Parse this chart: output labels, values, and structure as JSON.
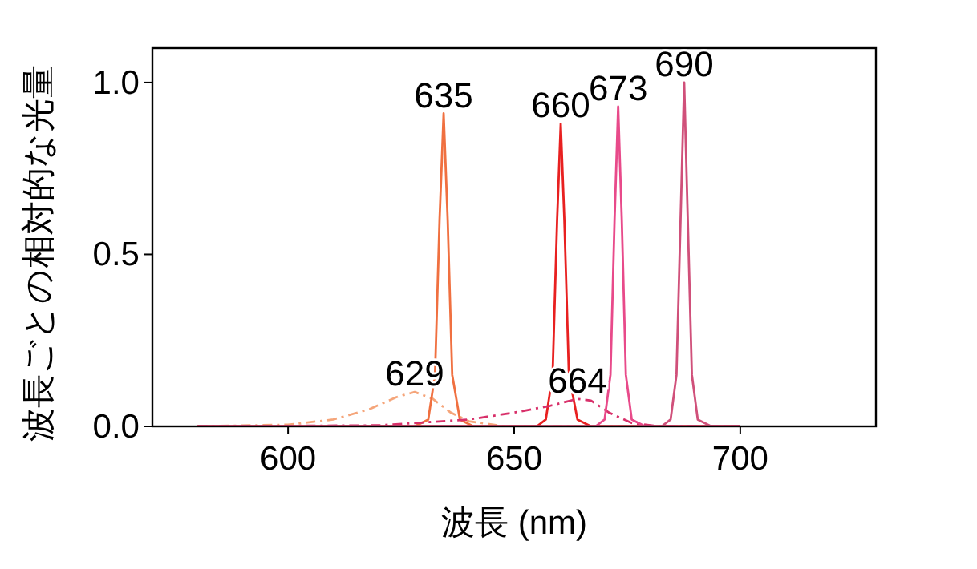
{
  "chart_data": {
    "type": "line",
    "xlabel": "波長 (nm)",
    "ylabel": "波長ごとの相対的な光量",
    "xlim": [
      570,
      730
    ],
    "ylim": [
      0,
      1.1
    ],
    "xticks": [
      600,
      650,
      700
    ],
    "yticks": [
      {
        "value": 0,
        "label": "0.0"
      },
      {
        "value": 0.5,
        "label": "0.5"
      },
      {
        "value": 1,
        "label": "1.0"
      }
    ],
    "grid": false,
    "marker": "none",
    "series": [
      {
        "color": "#f5a57a",
        "line_style": "dashdot",
        "x": [
          580,
          600,
          610,
          618,
          624,
          628,
          632,
          636,
          640,
          648,
          700
        ],
        "values": [
          0,
          0.005,
          0.02,
          0.05,
          0.085,
          0.1,
          0.08,
          0.04,
          0.015,
          0,
          0
        ]
      },
      {
        "color": "#f07040",
        "line_style": "solid",
        "x": [
          580,
          628,
          631,
          632.5,
          633.5,
          634.4,
          635.3,
          636.3,
          638,
          641,
          700
        ],
        "values": [
          0,
          0,
          0.02,
          0.15,
          0.6,
          0.91,
          0.6,
          0.15,
          0.02,
          0,
          0
        ]
      },
      {
        "color": "#e82020",
        "line_style": "solid",
        "x": [
          580,
          655,
          657,
          658.5,
          659.5,
          660.3,
          661.1,
          662.1,
          664,
          667,
          700
        ],
        "values": [
          0,
          0,
          0.02,
          0.15,
          0.6,
          0.88,
          0.6,
          0.15,
          0.02,
          0,
          0
        ]
      },
      {
        "color": "#d8306a",
        "line_style": "dashdot",
        "x": [
          580,
          620,
          640,
          650,
          658,
          664,
          667,
          671,
          676,
          682,
          700
        ],
        "values": [
          0,
          0.003,
          0.02,
          0.04,
          0.06,
          0.08,
          0.075,
          0.04,
          0.01,
          0,
          0
        ]
      },
      {
        "color": "#e84a8a",
        "line_style": "solid",
        "x": [
          580,
          668,
          670,
          671.3,
          672.2,
          673,
          673.8,
          674.7,
          676,
          679,
          700
        ],
        "values": [
          0,
          0,
          0.02,
          0.15,
          0.6,
          0.93,
          0.6,
          0.15,
          0.02,
          0,
          0
        ]
      },
      {
        "color": "#d0507a",
        "line_style": "solid",
        "x": [
          580,
          682.6,
          684.6,
          685.9,
          686.8,
          687.6,
          688.4,
          689.3,
          690.6,
          693.6,
          700
        ],
        "values": [
          0,
          0,
          0.02,
          0.15,
          0.6,
          1.0,
          0.6,
          0.15,
          0.02,
          0,
          0
        ]
      }
    ],
    "annotations": [
      {
        "text": "629",
        "x": 628,
        "y": 0.1
      },
      {
        "text": "635",
        "x": 634.4,
        "y": 0.91
      },
      {
        "text": "660",
        "x": 660.3,
        "y": 0.88
      },
      {
        "text": "664",
        "x": 664,
        "y": 0.08
      },
      {
        "text": "673",
        "x": 673,
        "y": 0.93
      },
      {
        "text": "690",
        "x": 687.6,
        "y": 1.0
      }
    ]
  }
}
